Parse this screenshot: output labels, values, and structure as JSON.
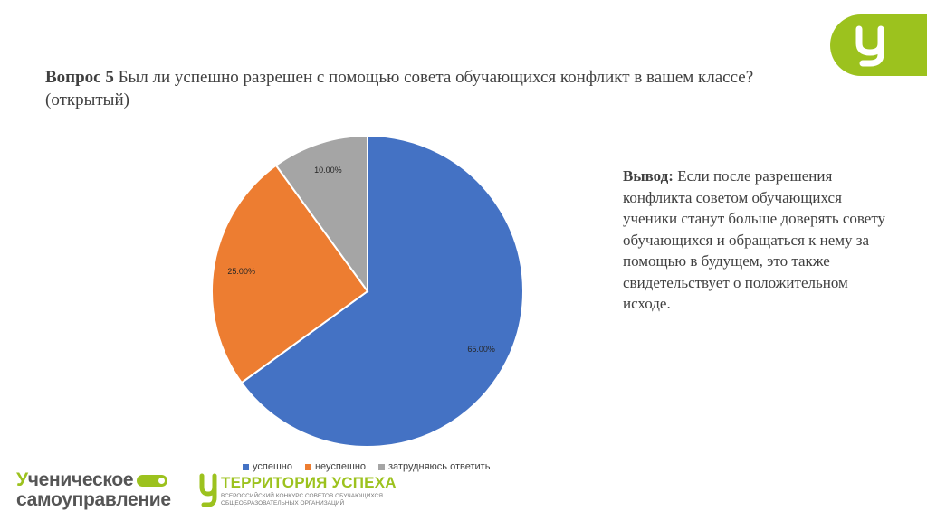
{
  "question": {
    "number": "Вопрос 5",
    "text": " Был ли успешно разрешен с помощью совета обучающихся конфликт в вашем классе?(открытый)"
  },
  "conclusion": {
    "label": "Вывод:",
    "text": " Если после разрешения конфликта советом обучающихся ученики станут больше доверять совету обучающихся и обращаться к нему за помощью в будущем, это также свидетельствует о положительном исходе."
  },
  "chart_data": {
    "type": "pie",
    "categories": [
      "успешно",
      "неуспешно",
      "затрудняюсь ответить"
    ],
    "values": [
      65,
      25,
      10
    ],
    "labels": [
      "65.00%",
      "25.00%",
      "10.00%"
    ],
    "colors": [
      "#4472c4",
      "#ed7d31",
      "#a5a5a5"
    ],
    "legend_position": "bottom"
  },
  "footer": {
    "logo1": {
      "line1": "Ученическое",
      "line1_first": "У",
      "line1_rest": "ченическое",
      "line2": "самоуправление"
    },
    "logo2": {
      "title": "ТЕРРИТОРИЯ УСПЕХА",
      "sub1": "ВСЕРОССИЙСКИЙ КОНКУРС СОВЕТОВ ОБУЧАЮЩИХСЯ",
      "sub2": "ОБЩЕОБРАЗОВАТЕЛЬНЫХ ОРГАНИЗАЦИЙ"
    }
  },
  "colors": {
    "brand_green": "#9cc21e"
  }
}
